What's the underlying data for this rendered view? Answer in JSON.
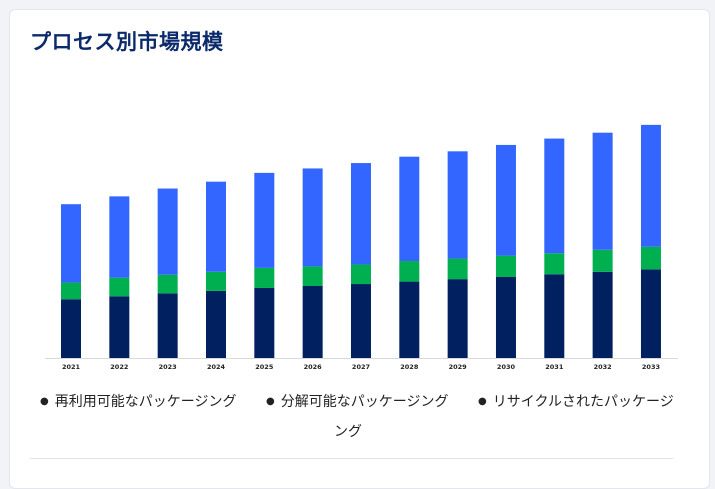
{
  "title": "プロセス別市場規模",
  "legend": [
    {
      "label": "再利用可能なパッケージング",
      "color": "#002060"
    },
    {
      "label": "分解可能なパッケージング",
      "color": "#00b050"
    },
    {
      "label": "リサイクルされたパッケージ",
      "label_wrap": "ング",
      "color": "#3366ff"
    }
  ],
  "chart_data": {
    "type": "bar",
    "stacked": true,
    "title": "プロセス別市場規模",
    "xlabel": "",
    "ylabel": "",
    "categories": [
      "2021",
      "2022",
      "2023",
      "2024",
      "2025",
      "2026",
      "2027",
      "2028",
      "2029",
      "2030",
      "2031",
      "2032",
      "2033"
    ],
    "series": [
      {
        "name": "再利用可能なパッケージング",
        "color": "#002060",
        "values": [
          60,
          63,
          66,
          68.5,
          71.5,
          73.5,
          75.5,
          78,
          80.5,
          83,
          85.5,
          88,
          90.5
        ]
      },
      {
        "name": "分解可能なパッケージング",
        "color": "#00b050",
        "values": [
          17,
          19,
          19,
          19.5,
          20.5,
          20,
          20,
          21,
          21,
          21.5,
          21.5,
          22.5,
          23
        ]
      },
      {
        "name": "リサイクルされたパッケージング",
        "color": "#3366ff",
        "values": [
          80,
          83,
          88,
          92,
          97,
          100,
          103.5,
          106.5,
          109.5,
          113,
          117,
          119.5,
          124.5
        ]
      }
    ],
    "ylim": [
      0,
      245
    ],
    "grid": false,
    "legend_position": "bottom"
  }
}
